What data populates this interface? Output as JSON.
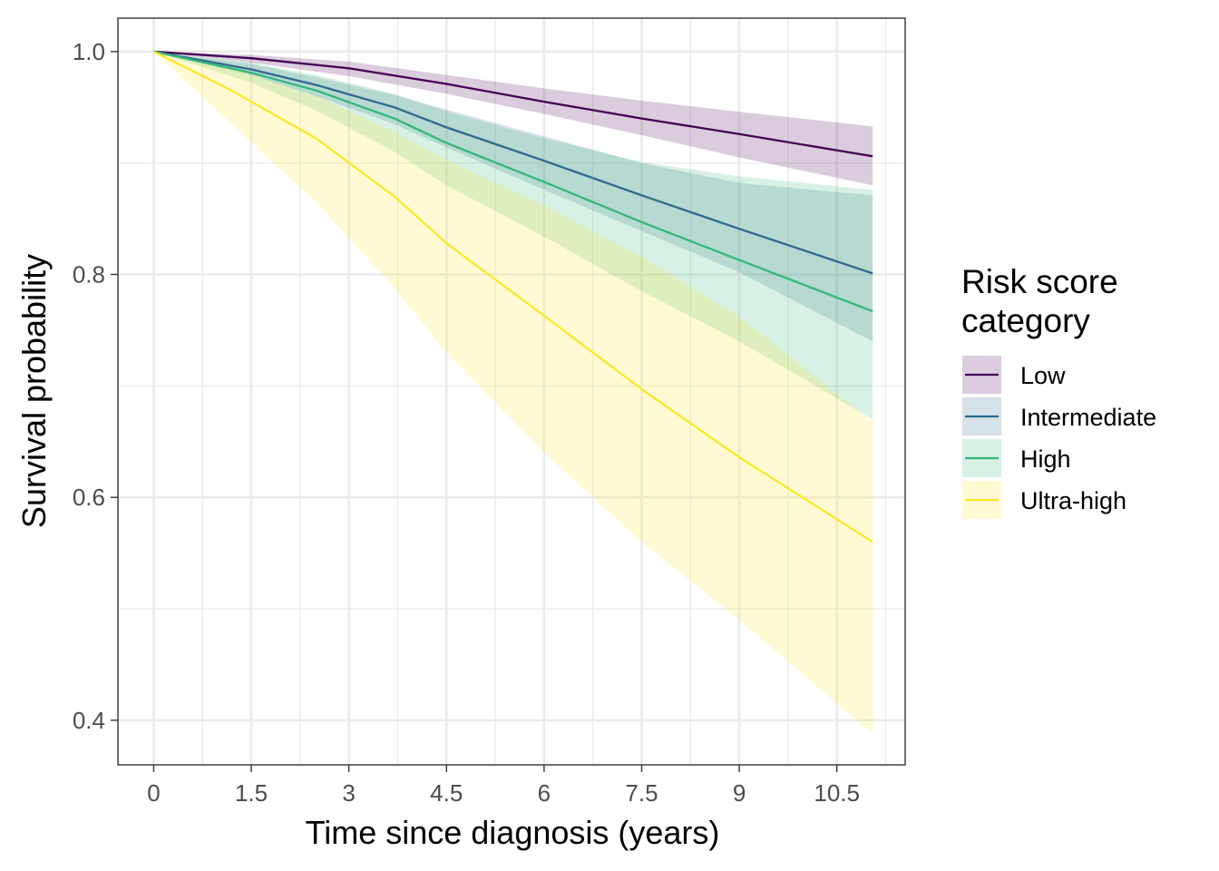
{
  "chart_data": {
    "type": "line",
    "xlabel": "Time since diagnosis (years)",
    "ylabel": "Survival probability",
    "xlim": [
      -0.55,
      11.55
    ],
    "ylim": [
      0.36,
      1.03
    ],
    "x_ticks": [
      0,
      1.5,
      3,
      4.5,
      6,
      7.5,
      9,
      10.5
    ],
    "x_tick_labels": [
      "0",
      "1.5",
      "3",
      "4.5",
      "6",
      "7.5",
      "9",
      "10.5"
    ],
    "y_ticks": [
      0.4,
      0.6,
      0.8,
      1.0
    ],
    "y_tick_labels": [
      "0.4",
      "0.6",
      "0.8",
      "1.0"
    ],
    "grid": true,
    "legend": {
      "title": [
        "Risk score",
        "category"
      ],
      "position": "right"
    },
    "series": [
      {
        "name": "Low",
        "color": "#440154",
        "x": [
          0,
          1.5,
          3,
          4.5,
          6,
          7.5,
          9,
          11.05
        ],
        "y": [
          1.0,
          0.994,
          0.985,
          0.971,
          0.955,
          0.94,
          0.926,
          0.906
        ],
        "lower": [
          1.0,
          0.99,
          0.978,
          0.962,
          0.944,
          0.925,
          0.905,
          0.88
        ],
        "upper": [
          1.0,
          0.997,
          0.991,
          0.979,
          0.967,
          0.956,
          0.946,
          0.933
        ]
      },
      {
        "name": "Intermediate",
        "color": "#31688E",
        "x": [
          0,
          1.5,
          2.5,
          3.7,
          4.5,
          6,
          7.5,
          9,
          11.05
        ],
        "y": [
          1.0,
          0.984,
          0.97,
          0.95,
          0.932,
          0.902,
          0.871,
          0.841,
          0.801
        ],
        "lower": [
          1.0,
          0.979,
          0.96,
          0.935,
          0.914,
          0.876,
          0.839,
          0.802,
          0.74
        ],
        "upper": [
          1.0,
          0.989,
          0.977,
          0.961,
          0.948,
          0.924,
          0.9,
          0.882,
          0.871
        ]
      },
      {
        "name": "High",
        "color": "#35B779",
        "x": [
          0,
          1.5,
          2.5,
          3.7,
          4.5,
          6,
          7.5,
          9,
          11.05
        ],
        "y": [
          1.0,
          0.981,
          0.965,
          0.94,
          0.918,
          0.883,
          0.847,
          0.813,
          0.767
        ],
        "lower": [
          1.0,
          0.972,
          0.947,
          0.91,
          0.88,
          0.834,
          0.785,
          0.74,
          0.67
        ],
        "upper": [
          1.0,
          0.99,
          0.979,
          0.962,
          0.946,
          0.922,
          0.901,
          0.888,
          0.876
        ]
      },
      {
        "name": "Ultra-high",
        "color": "#FDE725",
        "x": [
          0,
          1.2,
          2.5,
          3.7,
          4.5,
          6,
          7.5,
          9,
          11.05
        ],
        "y": [
          1.0,
          0.965,
          0.922,
          0.87,
          0.828,
          0.763,
          0.697,
          0.636,
          0.56
        ],
        "lower": [
          1.0,
          0.935,
          0.865,
          0.788,
          0.73,
          0.64,
          0.56,
          0.49,
          0.388
        ],
        "upper": [
          1.0,
          0.985,
          0.96,
          0.928,
          0.903,
          0.862,
          0.816,
          0.762,
          0.668
        ]
      }
    ]
  }
}
